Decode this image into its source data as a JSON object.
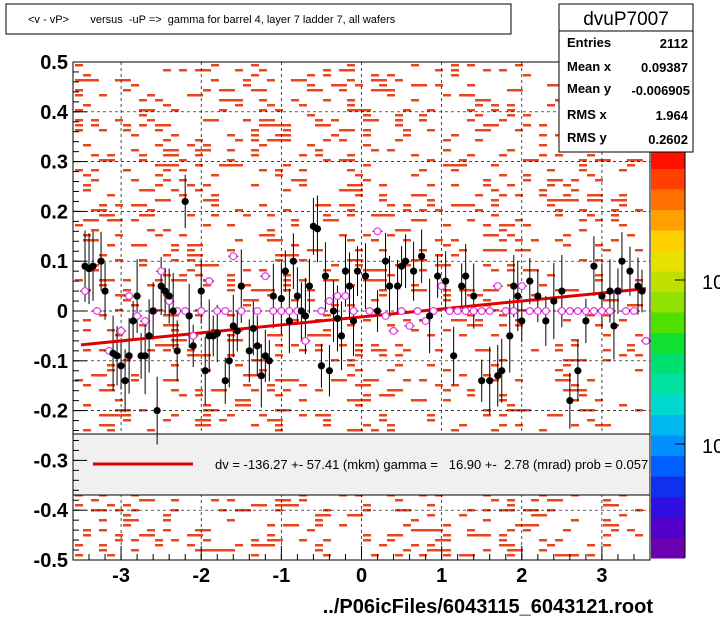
{
  "title": "<v - vP>       versus  -uP =>  gamma for barrel 4, layer 7 ladder 7, all wafers",
  "footer": "../P06icFiles/6043115_6043121.root",
  "stats": {
    "name": "dvuP7007",
    "rows": [
      {
        "label": "Entries",
        "value": "2112"
      },
      {
        "label": "Mean x",
        "value": "0.09387"
      },
      {
        "label": "Mean y",
        "value": "-0.006905"
      },
      {
        "label": "RMS x",
        "value": "1.964"
      },
      {
        "label": "RMS y",
        "value": "0.2602"
      }
    ]
  },
  "legend": {
    "text": "dv = -136.27 +- 57.41 (mkm) gamma =   16.90 +-  2.78 (mrad) prob = 0.057",
    "line_color": "#e00000"
  },
  "palette_labels": [
    "10",
    "10"
  ],
  "colors": {
    "hist_cells": "#e8461c",
    "profile_points": "#000000",
    "profile_open_points": "#e040e0",
    "fit_line": "#e00000",
    "legend_bg": "#f0f0f0",
    "frame": "#000000"
  },
  "chart_data": {
    "type": "scatter",
    "title": "<v - vP>       versus  -uP =>  gamma for barrel 4, layer 7 ladder 7, all wafers",
    "xlim": [
      -3.6,
      3.6
    ],
    "ylim": [
      -0.5,
      0.5
    ],
    "xticks": [
      -3,
      -2,
      -1,
      0,
      1,
      2,
      3
    ],
    "yticks": [
      -0.5,
      -0.4,
      -0.3,
      -0.2,
      -0.1,
      0,
      0.1,
      0.2,
      0.3,
      0.4,
      0.5
    ],
    "xtick_labels": [
      "-3",
      "-2",
      "-1",
      "0",
      "1",
      "2",
      "3"
    ],
    "ytick_labels": [
      "-0.5",
      "-0.4",
      "-0.3",
      "-0.2",
      "-0.1",
      "0",
      "0.1",
      "0.2",
      "0.3",
      "0.4",
      "0.5"
    ],
    "grid": true,
    "fit_line": {
      "x": [
        -3.5,
        3.55
      ],
      "y": [
        -0.068,
        0.045
      ]
    },
    "profile_filled": {
      "x": [
        -3.45,
        -3.4,
        -3.35,
        -3.25,
        -3.2,
        -3.1,
        -3.05,
        -3.0,
        -2.95,
        -2.9,
        -2.85,
        -2.8,
        -2.75,
        -2.7,
        -2.65,
        -2.6,
        -2.55,
        -2.5,
        -2.45,
        -2.4,
        -2.35,
        -2.3,
        -2.2,
        -2.15,
        -2.1,
        -2.0,
        -1.95,
        -1.9,
        -1.85,
        -1.8,
        -1.7,
        -1.65,
        -1.6,
        -1.55,
        -1.5,
        -1.4,
        -1.35,
        -1.3,
        -1.25,
        -1.2,
        -1.15,
        -1.1,
        -1.0,
        -0.95,
        -0.9,
        -0.85,
        -0.8,
        -0.75,
        -0.7,
        -0.65,
        -0.6,
        -0.55,
        -0.5,
        -0.45,
        -0.4,
        -0.35,
        -0.3,
        -0.25,
        -0.2,
        -0.15,
        -0.1,
        -0.05,
        0.05,
        0.2,
        0.3,
        0.35,
        0.45,
        0.5,
        0.55,
        0.65,
        0.75,
        0.85,
        0.95,
        1.05,
        1.15,
        1.25,
        1.3,
        1.4,
        1.5,
        1.6,
        1.7,
        1.75,
        1.85,
        1.9,
        1.95,
        2.0,
        2.1,
        2.2,
        2.3,
        2.4,
        2.5,
        2.6,
        2.7,
        2.8,
        2.9,
        3.0,
        3.1,
        3.15,
        3.2,
        3.25,
        3.35,
        3.45,
        3.5
      ],
      "y": [
        0.09,
        0.085,
        0.09,
        0.1,
        0.04,
        -0.085,
        -0.09,
        -0.11,
        -0.14,
        -0.09,
        -0.02,
        0.03,
        -0.09,
        -0.09,
        -0.05,
        0.0,
        -0.2,
        0.05,
        0.04,
        0.03,
        0.0,
        -0.08,
        0.22,
        -0.01,
        -0.07,
        0.04,
        -0.12,
        -0.05,
        -0.05,
        -0.045,
        -0.14,
        -0.1,
        -0.03,
        -0.04,
        0.05,
        -0.08,
        -0.035,
        -0.07,
        -0.13,
        -0.09,
        -0.1,
        0.03,
        0.025,
        0.08,
        -0.02,
        0.1,
        0.03,
        0.0,
        -0.01,
        0.05,
        0.17,
        0.165,
        -0.11,
        0.07,
        -0.12,
        0.0,
        -0.015,
        -0.05,
        0.08,
        0.05,
        -0.02,
        0.08,
        0.07,
        0.0,
        0.1,
        0.05,
        0.05,
        0.09,
        0.1,
        0.08,
        0.11,
        -0.01,
        0.07,
        0.06,
        -0.09,
        0.05,
        0.07,
        0.03,
        -0.14,
        -0.14,
        -0.13,
        -0.12,
        -0.05,
        0.05,
        0.03,
        -0.02,
        0.06,
        0.03,
        -0.02,
        0.02,
        0.04,
        -0.18,
        -0.12,
        -0.02,
        0.09,
        0.03,
        0.04,
        -0.03,
        0.04,
        0.1,
        0.08,
        0.05,
        0.04
      ]
    },
    "profile_open": {
      "x": [
        -3.45,
        -3.3,
        -3.15,
        -3.0,
        -2.9,
        -2.8,
        -2.7,
        -2.6,
        -2.5,
        -2.4,
        -2.3,
        -2.2,
        -2.1,
        -2.0,
        -1.9,
        -1.8,
        -1.7,
        -1.6,
        -1.5,
        -1.3,
        -1.2,
        -1.1,
        -1.0,
        -0.9,
        -0.8,
        -0.7,
        -0.5,
        -0.4,
        -0.3,
        -0.2,
        -0.1,
        0.1,
        0.2,
        0.3,
        0.4,
        0.5,
        0.6,
        0.7,
        0.8,
        0.9,
        1.0,
        1.1,
        1.2,
        1.3,
        1.4,
        1.5,
        1.6,
        1.7,
        1.8,
        1.9,
        2.0,
        2.1,
        2.2,
        2.3,
        2.5,
        2.6,
        2.7,
        2.8,
        2.9,
        3.0,
        3.1,
        3.2,
        3.3,
        3.4,
        3.55
      ],
      "y": [
        0.04,
        0.0,
        -0.08,
        -0.04,
        0.03,
        -0.01,
        -0.02,
        0.0,
        0.08,
        0.02,
        0.0,
        0.0,
        -0.05,
        0.0,
        0.06,
        0.0,
        0.0,
        0.11,
        0.0,
        0.0,
        0.07,
        0.0,
        0.0,
        0.0,
        0.0,
        -0.06,
        0.0,
        0.02,
        0.03,
        0.03,
        0.0,
        0.0,
        0.16,
        -0.01,
        -0.04,
        0.0,
        -0.03,
        0.0,
        -0.02,
        0.0,
        0.05,
        0.0,
        0.0,
        0.0,
        0.0,
        0.0,
        0.0,
        0.05,
        0.0,
        0.0,
        0.05,
        0.0,
        0.0,
        0.0,
        0.0,
        0.0,
        0.0,
        0.0,
        0.0,
        0.0,
        0.0,
        0.04,
        0.0,
        0.0,
        -0.06
      ]
    }
  }
}
